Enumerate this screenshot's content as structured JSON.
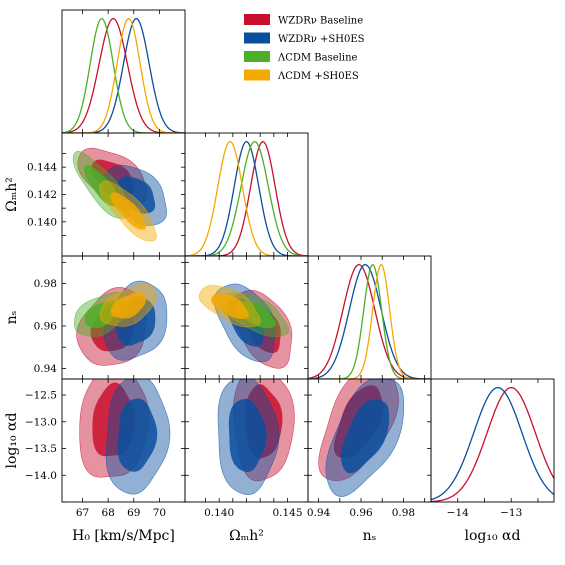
{
  "chart_data": {
    "type": "corner",
    "parameters": [
      {
        "key": "H0",
        "label": "H₀ [km/s/Mpc]",
        "range": [
          66.2,
          71.0
        ],
        "ticks": [
          67,
          68,
          69,
          70
        ],
        "tick_labels": [
          "67",
          "68",
          "69",
          "70"
        ]
      },
      {
        "key": "omh2",
        "label": "Ωₘh²",
        "range": [
          0.1375,
          0.1465
        ],
        "ticks": [
          0.139,
          0.14,
          0.141,
          0.142,
          0.143,
          0.144,
          0.145
        ],
        "tick_labels_x": [
          "",
          "0.140",
          "",
          "",
          "",
          "",
          "0.145"
        ],
        "tick_labels_y": [
          "",
          "0.140",
          "",
          "0.142",
          "",
          "0.144",
          ""
        ]
      },
      {
        "key": "ns",
        "label": "nₛ",
        "range": [
          0.935,
          0.993
        ],
        "ticks": [
          0.94,
          0.95,
          0.96,
          0.97,
          0.98,
          0.99
        ],
        "tick_labels": [
          "0.94",
          "",
          "0.96",
          "",
          "0.98",
          ""
        ]
      },
      {
        "key": "logalpha",
        "label": "log₁₀ αd",
        "range": [
          -14.5,
          -12.2
        ],
        "ticks": [
          -14.5,
          -14.0,
          -13.5,
          -13.0,
          -12.5
        ],
        "tick_labels_y": [
          "",
          "−14.0",
          "−13.5",
          "−13.0",
          "−12.5"
        ],
        "tick_labels_x": [
          "",
          "−14",
          "",
          "−13",
          ""
        ],
        "ticks_x": [
          -14.5,
          -14,
          -13.5,
          -13,
          -12.5
        ]
      }
    ],
    "legend": {
      "placement": "top-center",
      "entries": [
        {
          "name": "WZDRν Baseline",
          "color": "#c8102e"
        },
        {
          "name": "WZDRν +SH0ES",
          "color": "#0a4f9e"
        },
        {
          "name": "ΛCDM Baseline",
          "color": "#4caf28"
        },
        {
          "name": "ΛCDM +SH0ES",
          "color": "#f5a800"
        }
      ]
    },
    "series": [
      {
        "name": "WZDRν Baseline",
        "color": "#c8102e",
        "has": [
          "H0",
          "omh2",
          "ns",
          "logalpha"
        ],
        "mean": {
          "H0": 68.2,
          "omh2": 0.1432,
          "ns": 0.959,
          "logalpha": -13.0
        },
        "sd": {
          "H0": 0.55,
          "omh2": 0.0009,
          "ns": 0.0075,
          "logalpha": 0.45
        },
        "corr": {
          "H0|omh2": -0.5,
          "H0|ns": 0.2,
          "omh2|ns": -0.45,
          "H0|logalpha": 0.1,
          "omh2|logalpha": -0.05,
          "ns|logalpha": 0.55
        }
      },
      {
        "name": "WZDRν +SH0ES",
        "color": "#0a4f9e",
        "has": [
          "H0",
          "omh2",
          "ns",
          "logalpha"
        ],
        "mean": {
          "H0": 69.1,
          "omh2": 0.142,
          "ns": 0.962,
          "logalpha": -13.25
        },
        "sd": {
          "H0": 0.5,
          "omh2": 0.0009,
          "ns": 0.0075,
          "logalpha": 0.45
        },
        "corr": {
          "H0|omh2": -0.45,
          "H0|ns": 0.25,
          "omh2|ns": -0.45,
          "H0|logalpha": 0.1,
          "omh2|logalpha": -0.05,
          "ns|logalpha": 0.55
        }
      },
      {
        "name": "ΛCDM Baseline",
        "color": "#4caf28",
        "has": [
          "H0",
          "omh2",
          "ns"
        ],
        "mean": {
          "H0": 67.75,
          "omh2": 0.1426,
          "ns": 0.9655
        },
        "sd": {
          "H0": 0.45,
          "omh2": 0.001,
          "ns": 0.0042
        },
        "corr": {
          "H0|omh2": -0.8,
          "H0|ns": 0.45,
          "omh2|ns": -0.6
        }
      },
      {
        "name": "ΛCDM +SH0ES",
        "color": "#f5a800",
        "has": [
          "H0",
          "omh2",
          "ns"
        ],
        "mean": {
          "H0": 68.8,
          "omh2": 0.1408,
          "ns": 0.9695
        },
        "sd": {
          "H0": 0.45,
          "omh2": 0.0009,
          "ns": 0.004
        },
        "corr": {
          "H0|omh2": -0.8,
          "H0|ns": 0.45,
          "omh2|ns": -0.6
        }
      }
    ]
  }
}
